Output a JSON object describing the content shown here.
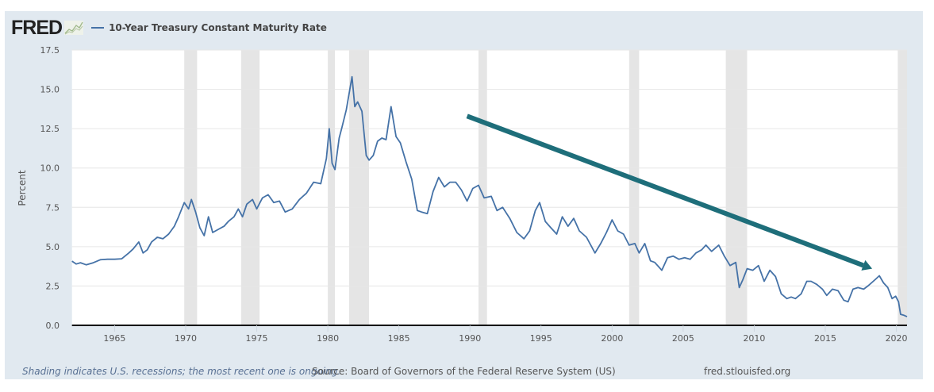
{
  "header": {
    "logo_text": "FRED",
    "logo_icon": "line-graph-icon",
    "legend_label": "10-Year Treasury Constant Maturity Rate"
  },
  "footer": {
    "recession_note": "Shading indicates U.S. recessions; the most recent one is ongoing.",
    "source": "Source: Board of Governors of the Federal Reserve System (US)",
    "url": "fred.stlouisfed.org"
  },
  "colors": {
    "series": "#4572a7",
    "trend_arrow": "#1e6e7a",
    "recession": "#e5e5e5",
    "panel": "#e1e9f0"
  },
  "chart_data": {
    "type": "line",
    "title": "10-Year Treasury Constant Maturity Rate",
    "xlabel": "",
    "ylabel": "Percent",
    "xlim": [
      1962.0,
      2020.75
    ],
    "ylim": [
      0,
      17.5
    ],
    "grid": true,
    "legend": "top-left",
    "y_ticks": [
      "0.0",
      "2.5",
      "5.0",
      "7.5",
      "10.0",
      "12.5",
      "15.0",
      "17.5"
    ],
    "x_ticks": [
      "1965",
      "1970",
      "1975",
      "1980",
      "1985",
      "1990",
      "1995",
      "2000",
      "2005",
      "2010",
      "2015",
      "2020"
    ],
    "recessions": [
      [
        1969.9,
        1970.8
      ],
      [
        1973.9,
        1975.2
      ],
      [
        1980.0,
        1980.5
      ],
      [
        1981.5,
        1982.9
      ],
      [
        1990.6,
        1991.2
      ],
      [
        2001.2,
        2001.9
      ],
      [
        2008.0,
        2009.5
      ],
      [
        2020.1,
        2020.75
      ]
    ],
    "series": [
      {
        "name": "10-Year Treasury Constant Maturity Rate",
        "x": [
          1962.0,
          1962.3,
          1962.6,
          1963.0,
          1963.5,
          1964.0,
          1964.5,
          1965.0,
          1965.5,
          1966.0,
          1966.3,
          1966.7,
          1967.0,
          1967.3,
          1967.6,
          1968.0,
          1968.4,
          1968.8,
          1969.2,
          1969.5,
          1969.9,
          1970.2,
          1970.4,
          1970.7,
          1971.0,
          1971.3,
          1971.6,
          1971.9,
          1972.3,
          1972.7,
          1973.0,
          1973.4,
          1973.7,
          1974.0,
          1974.3,
          1974.7,
          1975.0,
          1975.4,
          1975.8,
          1976.2,
          1976.6,
          1977.0,
          1977.5,
          1978.0,
          1978.5,
          1979.0,
          1979.5,
          1979.9,
          1980.1,
          1980.3,
          1980.5,
          1980.8,
          1981.0,
          1981.3,
          1981.7,
          1981.9,
          1982.1,
          1982.4,
          1982.7,
          1982.9,
          1983.2,
          1983.5,
          1983.8,
          1984.1,
          1984.45,
          1984.8,
          1985.1,
          1985.5,
          1985.9,
          1986.3,
          1986.6,
          1987.0,
          1987.4,
          1987.8,
          1988.2,
          1988.6,
          1989.0,
          1989.4,
          1989.8,
          1990.2,
          1990.6,
          1991.0,
          1991.5,
          1991.9,
          1992.3,
          1992.8,
          1993.3,
          1993.8,
          1994.2,
          1994.6,
          1994.9,
          1995.3,
          1995.7,
          1996.1,
          1996.5,
          1996.9,
          1997.3,
          1997.7,
          1998.2,
          1998.8,
          1999.2,
          1999.6,
          2000.0,
          2000.4,
          2000.8,
          2001.2,
          2001.6,
          2001.9,
          2002.3,
          2002.7,
          2003.0,
          2003.5,
          2003.9,
          2004.3,
          2004.7,
          2005.1,
          2005.5,
          2005.9,
          2006.3,
          2006.6,
          2007.0,
          2007.5,
          2007.9,
          2008.3,
          2008.7,
          2008.95,
          2009.2,
          2009.5,
          2009.9,
          2010.3,
          2010.7,
          2011.1,
          2011.5,
          2011.9,
          2012.3,
          2012.6,
          2012.9,
          2013.3,
          2013.7,
          2014.0,
          2014.4,
          2014.8,
          2015.1,
          2015.5,
          2015.9,
          2016.3,
          2016.6,
          2016.95,
          2017.3,
          2017.7,
          2018.0,
          2018.5,
          2018.8,
          2019.1,
          2019.4,
          2019.7,
          2019.95,
          2020.15,
          2020.3,
          2020.5,
          2020.75
        ],
        "values": [
          4.08,
          3.9,
          3.98,
          3.85,
          3.98,
          4.17,
          4.2,
          4.2,
          4.23,
          4.6,
          4.85,
          5.3,
          4.6,
          4.8,
          5.3,
          5.6,
          5.5,
          5.8,
          6.3,
          6.9,
          7.8,
          7.4,
          8.0,
          7.2,
          6.2,
          5.7,
          6.9,
          5.9,
          6.1,
          6.3,
          6.6,
          6.9,
          7.4,
          6.9,
          7.7,
          8.0,
          7.4,
          8.1,
          8.3,
          7.8,
          7.9,
          7.2,
          7.4,
          8.0,
          8.4,
          9.1,
          9.0,
          10.6,
          12.5,
          10.3,
          9.9,
          11.9,
          12.6,
          13.7,
          15.8,
          13.9,
          14.2,
          13.6,
          10.8,
          10.5,
          10.8,
          11.7,
          11.9,
          11.8,
          13.9,
          12.0,
          11.6,
          10.4,
          9.3,
          7.3,
          7.2,
          7.1,
          8.5,
          9.4,
          8.8,
          9.1,
          9.1,
          8.6,
          7.9,
          8.7,
          8.9,
          8.1,
          8.2,
          7.3,
          7.5,
          6.8,
          5.9,
          5.5,
          6.0,
          7.3,
          7.8,
          6.6,
          6.2,
          5.8,
          6.9,
          6.3,
          6.8,
          6.0,
          5.6,
          4.6,
          5.2,
          5.9,
          6.7,
          6.0,
          5.8,
          5.1,
          5.2,
          4.6,
          5.2,
          4.1,
          4.0,
          3.5,
          4.3,
          4.4,
          4.2,
          4.3,
          4.2,
          4.6,
          4.8,
          5.1,
          4.7,
          5.1,
          4.4,
          3.8,
          4.0,
          2.4,
          2.9,
          3.6,
          3.5,
          3.8,
          2.8,
          3.5,
          3.1,
          2.0,
          1.7,
          1.8,
          1.7,
          2.0,
          2.8,
          2.8,
          2.6,
          2.3,
          1.9,
          2.3,
          2.2,
          1.6,
          1.5,
          2.3,
          2.4,
          2.3,
          2.5,
          2.9,
          3.15,
          2.7,
          2.4,
          1.7,
          1.85,
          1.5,
          0.7,
          0.65,
          0.55
        ]
      }
    ],
    "annotations": [
      {
        "type": "arrow",
        "description": "downward trend arrow",
        "from": [
          1989.8,
          13.3
        ],
        "to": [
          2018.3,
          3.6
        ]
      }
    ]
  }
}
